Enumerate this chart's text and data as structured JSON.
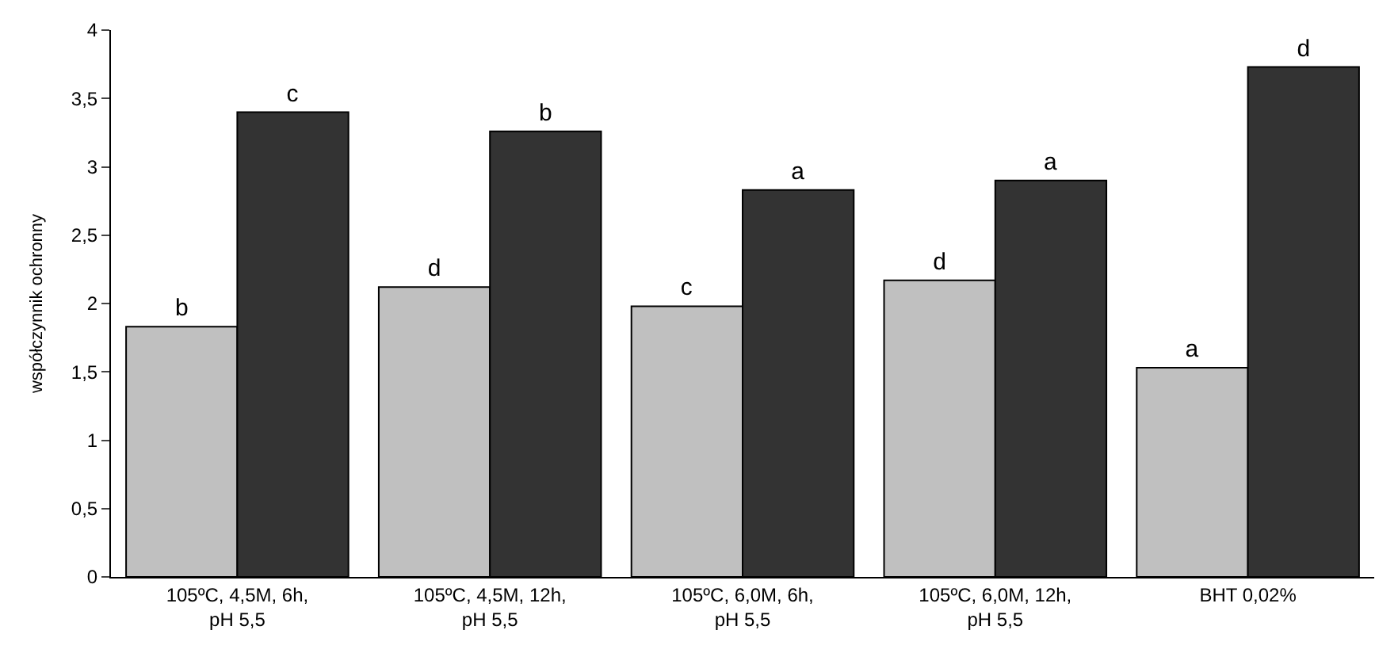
{
  "chart_data": {
    "type": "bar",
    "ylabel": "współczynnik ochronny",
    "categories": [
      "105ºC, 4,5M, 6h, pH 5,5",
      "105ºC, 4,5M, 12h, pH 5,5",
      "105ºC, 6,0M, 6h, pH 5,5",
      "105ºC, 6,0M, 12h, pH 5,5",
      "BHT 0,02%"
    ],
    "series": [
      {
        "color": "#c0c0c0",
        "values": [
          1.83,
          2.12,
          1.98,
          2.17,
          1.53
        ],
        "value_labels": [
          "b",
          "d",
          "c",
          "d",
          "a"
        ]
      },
      {
        "color": "#333333",
        "values": [
          3.4,
          3.26,
          2.83,
          2.9,
          3.73
        ],
        "value_labels": [
          "c",
          "b",
          "a",
          "a",
          "d"
        ]
      }
    ],
    "ylim": [
      0,
      4
    ],
    "yticks": [
      0,
      {
        "value": 0.5,
        "label": "0,5"
      },
      1,
      {
        "value": 1.5,
        "label": "1,5"
      },
      2,
      {
        "value": 2.5,
        "label": "2,5"
      },
      3,
      {
        "value": 3.5,
        "label": "3,5"
      },
      4
    ]
  }
}
